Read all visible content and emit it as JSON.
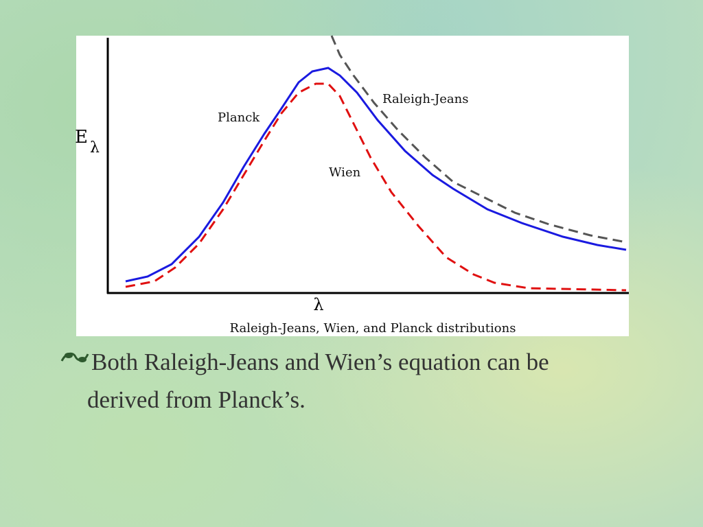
{
  "figure": {
    "y_label": {
      "symbol": "E",
      "subscript": "λ"
    },
    "x_label": "λ",
    "caption": "Raleigh-Jeans, Wien, and Planck distributions",
    "curve_labels": {
      "planck": "Planck",
      "raleigh_jeans": "Raleigh-Jeans",
      "wien": "Wien"
    }
  },
  "bullets": [
    "Both Raleigh-Jeans and Wien’s equation can be derived from Planck’s."
  ]
}
